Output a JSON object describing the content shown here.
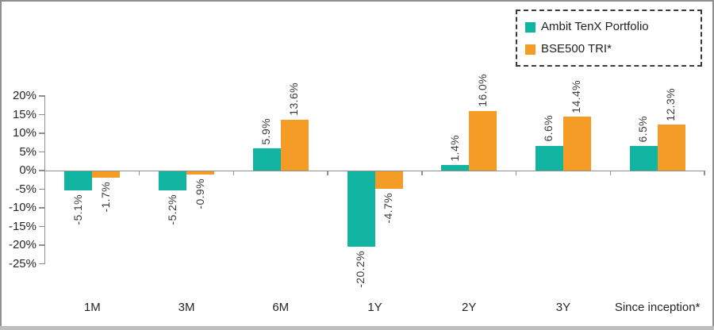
{
  "legend": {
    "items": [
      {
        "label": "Ambit TenX Portfolio",
        "color": "#10b4a0"
      },
      {
        "label": "BSE500 TRI*",
        "color": "#f59c26"
      }
    ]
  },
  "chart_data": {
    "type": "bar",
    "title": "",
    "categories": [
      "1M",
      "3M",
      "6M",
      "1Y",
      "2Y",
      "3Y",
      "Since inception*"
    ],
    "series": [
      {
        "name": "Ambit TenX Portfolio",
        "color": "#10b4a0",
        "values": [
          -5.1,
          -5.2,
          5.9,
          -20.2,
          1.4,
          6.6,
          6.5
        ],
        "labels": [
          "-5.1%",
          "-5.2%",
          "5.9%",
          "-20.2%",
          "1.4%",
          "6.6%",
          "6.5%"
        ]
      },
      {
        "name": "BSE500 TRI*",
        "color": "#f59c26",
        "values": [
          -1.7,
          -0.9,
          13.6,
          -4.7,
          16.0,
          14.4,
          12.3
        ],
        "labels": [
          "-1.7%",
          "-0.9%",
          "13.6%",
          "-4.7%",
          "16.0%",
          "14.4%",
          "12.3%"
        ]
      }
    ],
    "ylim": [
      -25,
      20
    ],
    "ytick_step": 5,
    "ytick_labels": [
      "20%",
      "15%",
      "10%",
      "5%",
      "0%",
      "-5%",
      "-10%",
      "-15%",
      "-20%",
      "-25%"
    ],
    "grid": false,
    "legend_position": "top-right",
    "axis_color": "#8f8f8f",
    "value_label_color": "#3d3d3d"
  }
}
